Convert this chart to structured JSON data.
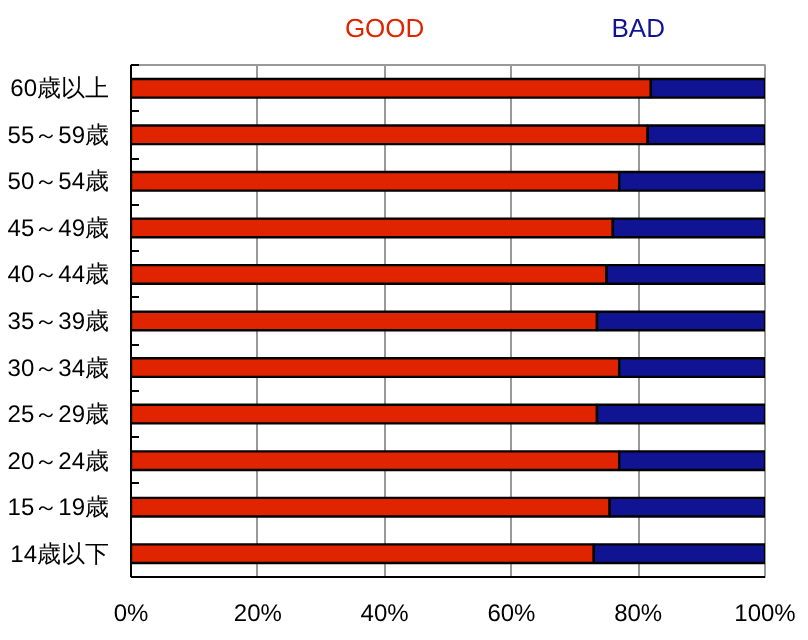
{
  "chart_data": {
    "type": "bar",
    "orientation": "horizontal",
    "stacked": true,
    "categories": [
      "60歳以上",
      "55～59歳",
      "50～54歳",
      "45～49歳",
      "40～44歳",
      "35～39歳",
      "30～34歳",
      "25～29歳",
      "20～24歳",
      "15～19歳",
      "14歳以下"
    ],
    "series": [
      {
        "name": "GOOD",
        "color": "#e02400",
        "values": [
          82,
          81.5,
          77,
          76,
          75,
          73.5,
          77,
          73.5,
          77,
          75.5,
          73
        ]
      },
      {
        "name": "BAD",
        "color": "#101493",
        "values": [
          18,
          18.5,
          23,
          24,
          25,
          26.5,
          23,
          26.5,
          23,
          24.5,
          27
        ]
      }
    ],
    "xlim": [
      0,
      100
    ],
    "xticks": [
      {
        "value": 0,
        "label": "0%"
      },
      {
        "value": 20,
        "label": "20%"
      },
      {
        "value": 40,
        "label": "40%"
      },
      {
        "value": 60,
        "label": "60%"
      },
      {
        "value": 80,
        "label": "80%"
      },
      {
        "value": 100,
        "label": "100%"
      }
    ],
    "grid": "x"
  }
}
